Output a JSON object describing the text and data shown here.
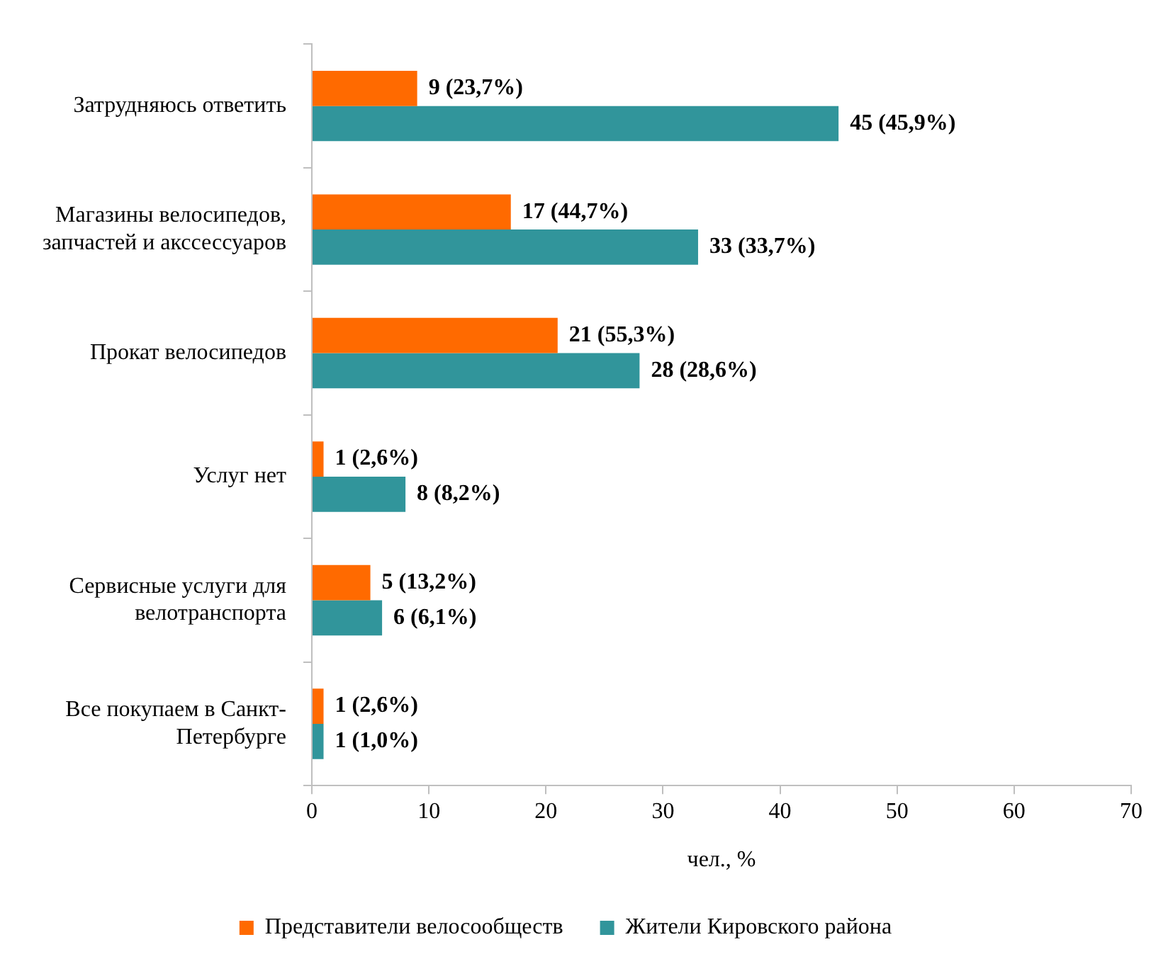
{
  "chart_data": {
    "type": "bar",
    "orientation": "horizontal",
    "xlabel": "чел., %",
    "categories": [
      "Затрудняюсь ответить",
      "Магазины велосипедов, запчастей и акссессуаров",
      "Прокат велосипедов",
      "Услуг нет",
      "Сервисные услуги для велотранспорта",
      "Все покупаем в Санкт-Петербурге"
    ],
    "series": [
      {
        "name": "Представители велосообществ",
        "color": "#ff6a00",
        "values": [
          9,
          17,
          21,
          1,
          5,
          1
        ],
        "value_labels": [
          "9 (23,7%)",
          "17 (44,7%)",
          "21 (55,3%)",
          "1 (2,6%)",
          "5 (13,2%)",
          "1 (2,6%)"
        ]
      },
      {
        "name": "Жители Кировского района",
        "color": "#31959b",
        "values": [
          45,
          33,
          28,
          8,
          6,
          1
        ],
        "value_labels": [
          "45 (45,9%)",
          "33 (33,7%)",
          "28 (28,6%)",
          "8 (8,2%)",
          "6 (6,1%)",
          "1 (1,0%)"
        ]
      }
    ],
    "xlim": [
      0,
      70
    ],
    "xticks": [
      0,
      10,
      20,
      30,
      40,
      50,
      60,
      70
    ],
    "grid": false,
    "legend": "bottom"
  }
}
